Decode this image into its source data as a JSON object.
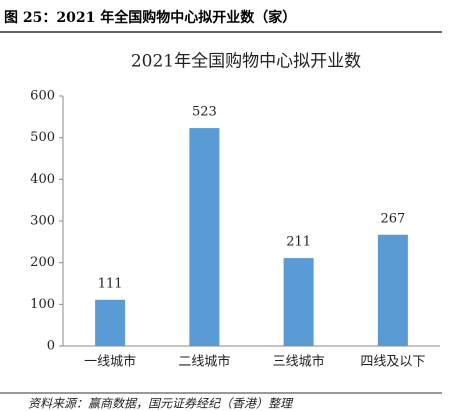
{
  "caption": "图 25：2021 年全国购物中心拟开业数（家）",
  "chart_data": {
    "type": "bar",
    "title": "2021年全国购物中心拟开业数",
    "categories": [
      "一线城市",
      "二线城市",
      "三线城市",
      "四线及以下"
    ],
    "values": [
      111,
      523,
      211,
      267
    ],
    "color": "#5b9bd5",
    "ylim": [
      0,
      600
    ],
    "yticks": [
      0,
      100,
      200,
      300,
      400,
      500,
      600
    ],
    "grid": false
  },
  "source": "资料来源：赢商数据，国元证券经纪（香港）整理"
}
